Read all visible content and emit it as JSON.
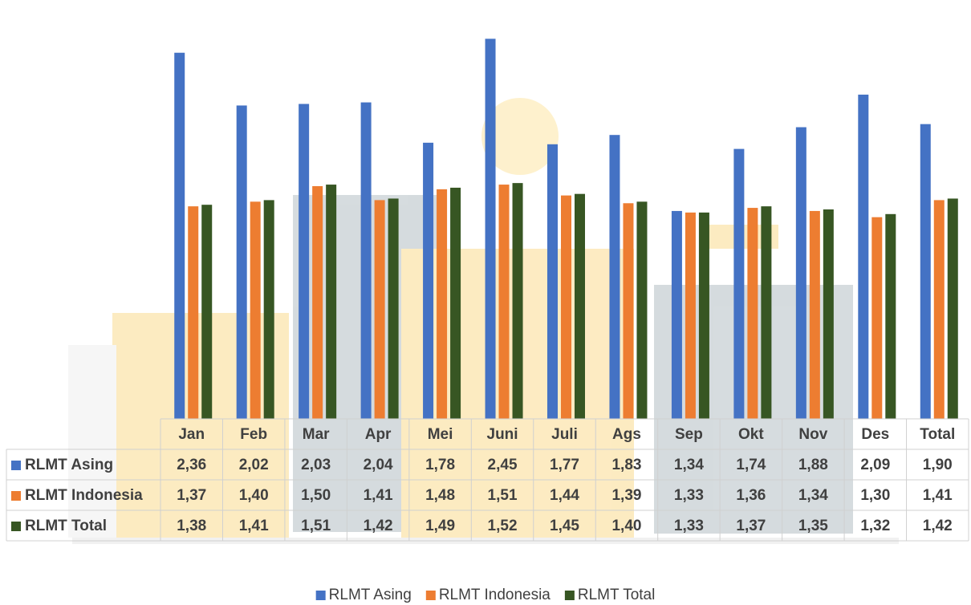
{
  "chart_data": {
    "type": "bar",
    "categories": [
      "Jan",
      "Feb",
      "Mar",
      "Apr",
      "Mei",
      "Juni",
      "Juli",
      "Ags",
      "Sep",
      "Okt",
      "Nov",
      "Des",
      "Total"
    ],
    "series": [
      {
        "name": "RLMT Asing",
        "color": "#4472c4",
        "values": [
          2.36,
          2.02,
          2.03,
          2.04,
          1.78,
          2.45,
          1.77,
          1.83,
          1.34,
          1.74,
          1.88,
          2.09,
          1.9
        ],
        "value_labels": [
          "2,36",
          "2,02",
          "2,03",
          "2,04",
          "1,78",
          "2,45",
          "1,77",
          "1,83",
          "1,34",
          "1,74",
          "1,88",
          "2,09",
          "1,90"
        ]
      },
      {
        "name": "RLMT Indonesia",
        "color": "#ed7d31",
        "values": [
          1.37,
          1.4,
          1.5,
          1.41,
          1.48,
          1.51,
          1.44,
          1.39,
          1.33,
          1.36,
          1.34,
          1.3,
          1.41
        ],
        "value_labels": [
          "1,37",
          "1,40",
          "1,50",
          "1,41",
          "1,48",
          "1,51",
          "1,44",
          "1,39",
          "1,33",
          "1,36",
          "1,34",
          "1,30",
          "1,41"
        ]
      },
      {
        "name": "RLMT Total",
        "color": "#375623",
        "values": [
          1.38,
          1.41,
          1.51,
          1.42,
          1.49,
          1.52,
          1.45,
          1.4,
          1.33,
          1.37,
          1.35,
          1.32,
          1.42
        ],
        "value_labels": [
          "1,38",
          "1,41",
          "1,51",
          "1,42",
          "1,49",
          "1,52",
          "1,45",
          "1,40",
          "1,33",
          "1,37",
          "1,35",
          "1,32",
          "1,42"
        ]
      }
    ],
    "ylim": [
      0,
      2.7
    ],
    "legend": "bottom",
    "data_table": true
  }
}
